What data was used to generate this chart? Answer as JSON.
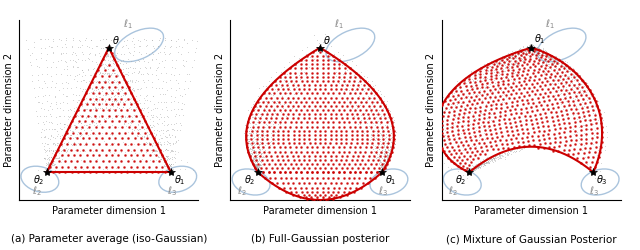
{
  "subtitle_a": "(a) Parameter average (iso-Gaussian)",
  "subtitle_b": "(b) Full-Gaussian posterior",
  "subtitle_c": "(c) Mixture of Gaussian Posterior",
  "xlabel": "Parameter dimension 1",
  "ylabel": "Parameter dimension 2",
  "bg_color": "#ffffff",
  "red_color": "#cc0000",
  "blue_ellipse_color": "#aac4dd",
  "gray_dot_color": "#aaaaaa",
  "star_color": "#111111"
}
